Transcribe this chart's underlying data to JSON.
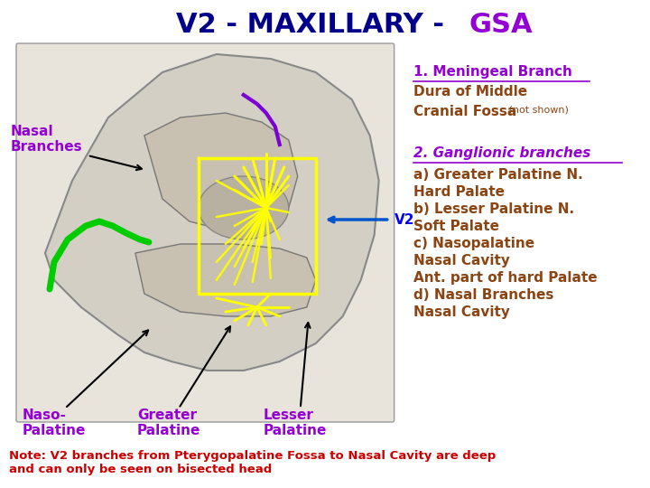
{
  "title_part1": "V2 - MAXILLARY - ",
  "title_part2": "GSA",
  "title_color1": "#00008B",
  "title_color2": "#9400D3",
  "title_fontsize": 22,
  "background_color": "#ffffff",
  "label_nasal_branches": "Nasal\nBranches",
  "label_naso_palatine": "Naso-\nPalatine",
  "label_greater_palatine": "Greater\nPalatine",
  "label_lesser_palatine": "Lesser\nPalatine",
  "label_v2": "V2",
  "label_color_purple": "#9400D3",
  "label_color_blue": "#0000FF",
  "meningeal_line1": "1. Meningeal Branch",
  "meningeal_line2": "Dura of Middle",
  "meningeal_line3": "Cranial Fossa",
  "meningeal_not_shown": " (not shown)",
  "meningeal_color": "#8B4513",
  "meningeal_underline_color": "#9400D3",
  "ganglionic_header": "2. Ganglionic branches",
  "ganglionic_a": "a) Greater Palatine N.",
  "ganglionic_a2": "Hard Palate",
  "ganglionic_b": "b) Lesser Palatine N.",
  "ganglionic_b2": "Soft Palate",
  "ganglionic_c": "c) Nasopalatine",
  "ganglionic_c2": "Nasal Cavity",
  "ganglionic_c3": "Ant. part of hard Palate",
  "ganglionic_d": "d) Nasal Branches",
  "ganglionic_d2": "Nasal Cavity",
  "ganglionic_color": "#8B4513",
  "note_text": "Note: V2 branches from Pterygopalatine Fossa to Nasal Cavity are deep\nand can only be seen on bisected head",
  "note_color": "#CC0000",
  "note_fontsize": 9.5,
  "fig_width": 7.2,
  "fig_height": 5.4,
  "fig_dpi": 100
}
